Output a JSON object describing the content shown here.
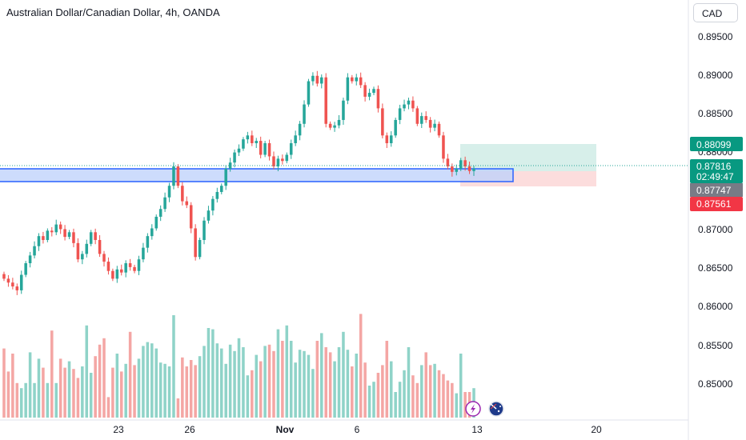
{
  "header": {
    "title": "Australian Dollar/Canadian Dollar, 4h, OANDA",
    "currency": "CAD"
  },
  "colors": {
    "up": "#26a69a",
    "down": "#ef5350",
    "vol_up": "#8fd3c8",
    "vol_down": "#f4a6a4",
    "zone_fill": "#bcd0fb",
    "zone_border": "#2962ff",
    "target_fill": "#cdebe5",
    "stop_fill": "#fbd5d5"
  },
  "price_axis": {
    "ticks": [
      "0.89500",
      "0.89000",
      "0.88500",
      "0.88000",
      "0.87500",
      "0.87000",
      "0.86500",
      "0.86000",
      "0.85500",
      "0.85000"
    ]
  },
  "price_tags": {
    "target": "0.88099",
    "current": "0.87816",
    "countdown": "02:49:47",
    "entry": "0.87747",
    "stop": "0.87561"
  },
  "time_axis": {
    "labels": [
      "23",
      "26",
      "Nov",
      "6",
      "13",
      "20"
    ]
  },
  "chart_data": {
    "type": "candlestick",
    "title": "Australian Dollar/Canadian Dollar, 4h, OANDA",
    "timeframe": "4h",
    "y_unit": "CAD",
    "ylim": [
      0.8455,
      0.8975
    ],
    "x_tick_labels": [
      "23",
      "26",
      "Nov",
      "6",
      "13",
      "20"
    ],
    "closes": [
      0.864,
      0.8635,
      0.863,
      0.8625,
      0.8645,
      0.866,
      0.867,
      0.8682,
      0.8695,
      0.869,
      0.8702,
      0.87,
      0.871,
      0.8704,
      0.8694,
      0.87,
      0.8686,
      0.8665,
      0.8672,
      0.8685,
      0.87,
      0.869,
      0.8672,
      0.8662,
      0.865,
      0.864,
      0.8652,
      0.8648,
      0.866,
      0.8655,
      0.865,
      0.8665,
      0.868,
      0.8695,
      0.8705,
      0.872,
      0.873,
      0.8745,
      0.876,
      0.8785,
      0.876,
      0.874,
      0.8735,
      0.8705,
      0.8668,
      0.869,
      0.8715,
      0.8728,
      0.8743,
      0.8752,
      0.876,
      0.8782,
      0.879,
      0.8803,
      0.8808,
      0.882,
      0.8825,
      0.8815,
      0.8818,
      0.88,
      0.8815,
      0.8798,
      0.8785,
      0.8795,
      0.8792,
      0.88,
      0.8815,
      0.8825,
      0.884,
      0.8865,
      0.8895,
      0.8902,
      0.8892,
      0.89,
      0.884,
      0.8835,
      0.8838,
      0.8845,
      0.887,
      0.89,
      0.8895,
      0.89,
      0.889,
      0.8875,
      0.888,
      0.8885,
      0.886,
      0.8825,
      0.8815,
      0.8825,
      0.8845,
      0.886,
      0.8865,
      0.887,
      0.886,
      0.884,
      0.885,
      0.8845,
      0.8835,
      0.884,
      0.8825,
      0.8795,
      0.8785,
      0.8778,
      0.8782,
      0.8793,
      0.8785,
      0.8779,
      0.8782
    ],
    "volume": [
      54,
      36,
      50,
      27,
      23,
      27,
      51,
      27,
      46,
      39,
      27,
      68,
      27,
      46,
      39,
      44,
      38,
      31,
      40,
      72,
      35,
      48,
      57,
      62,
      16,
      39,
      50,
      36,
      42,
      67,
      41,
      46,
      56,
      59,
      58,
      54,
      43,
      42,
      40,
      80,
      15,
      47,
      40,
      45,
      41,
      48,
      56,
      70,
      69,
      58,
      54,
      42,
      57,
      52,
      62,
      55,
      33,
      37,
      49,
      44,
      56,
      57,
      52,
      69,
      60,
      72,
      60,
      43,
      53,
      52,
      49,
      38,
      60,
      66,
      55,
      51,
      44,
      55,
      67,
      53,
      40,
      50,
      81,
      43,
      25,
      28,
      35,
      41,
      60,
      44,
      20,
      28,
      37,
      55,
      33,
      27,
      41,
      51,
      41,
      42,
      37,
      34,
      29,
      27,
      19,
      50,
      20,
      20,
      23
    ]
  }
}
